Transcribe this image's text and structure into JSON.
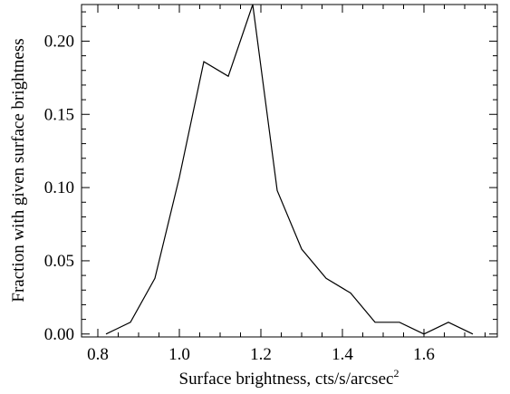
{
  "chart_data": {
    "type": "line",
    "title": "",
    "xlabel": "Surface brightness, cts/s/arcsec",
    "xlabel_superscript": "2",
    "ylabel": "Fraction with given surface brightness",
    "xlim": [
      0.76,
      1.78
    ],
    "ylim": [
      -0.002,
      0.225
    ],
    "x_ticks": [
      0.8,
      1.0,
      1.2,
      1.4,
      1.6
    ],
    "x_tick_labels": [
      "0.8",
      "1.0",
      "1.2",
      "1.4",
      "1.6"
    ],
    "y_ticks": [
      0.0,
      0.05,
      0.1,
      0.15,
      0.2
    ],
    "y_tick_labels": [
      "0.00",
      "0.05",
      "0.10",
      "0.15",
      "0.20"
    ],
    "x_minor_step": 0.05,
    "y_minor_step": 0.01,
    "grid": false,
    "legend": "none",
    "series": [
      {
        "color": "#000000",
        "x": [
          0.82,
          0.88,
          0.94,
          1.0,
          1.06,
          1.12,
          1.18,
          1.24,
          1.3,
          1.36,
          1.42,
          1.48,
          1.54,
          1.6,
          1.66,
          1.72
        ],
        "y": [
          0.0,
          0.008,
          0.038,
          0.107,
          0.186,
          0.176,
          0.225,
          0.098,
          0.058,
          0.038,
          0.028,
          0.008,
          0.008,
          0.0,
          0.008,
          0.0
        ]
      }
    ]
  }
}
